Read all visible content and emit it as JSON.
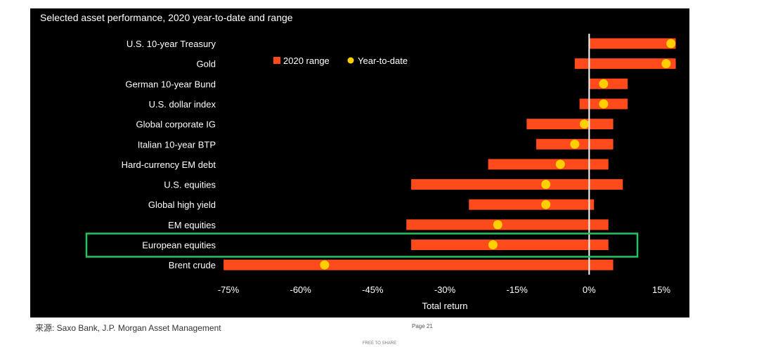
{
  "chart_data": {
    "type": "bar",
    "subtype": "horizontal-range-with-dot",
    "title": "Selected asset performance, 2020 year-to-date and range",
    "xlabel": "Total return",
    "ylabel": "",
    "xlim": [
      -75,
      15
    ],
    "xticks": [
      -75,
      -60,
      -45,
      -30,
      -15,
      0,
      15
    ],
    "xtick_labels": [
      "-75%",
      "-60%",
      "-45%",
      "-30%",
      "-15%",
      "0%",
      "15%"
    ],
    "grid": false,
    "legend_position": "top-center",
    "categories": [
      "U.S. 10-year Treasury",
      "Gold",
      "German 10-year Bund",
      "U.S. dollar index",
      "Global corporate IG",
      "Italian 10-year BTP",
      "Hard-currency EM debt",
      "U.S. equities",
      "Global high yield",
      "EM equities",
      "European equities",
      "Brent crude"
    ],
    "series": [
      {
        "name": "2020 range",
        "color": "#ff4a1c",
        "low": [
          0,
          -3,
          0,
          -2,
          -13,
          -11,
          -21,
          -37,
          -25,
          -38,
          -37,
          -76
        ],
        "high": [
          18,
          18,
          8,
          8,
          5,
          5,
          4,
          7,
          1,
          4,
          4,
          5
        ]
      },
      {
        "name": "Year-to-date",
        "color": "#ffd000",
        "values": [
          17,
          16,
          3,
          3,
          -1,
          -3,
          -6,
          -9,
          -9,
          -19,
          -20,
          -55
        ]
      }
    ],
    "highlight": {
      "category": "European equities",
      "color": "#22c55e"
    },
    "colors": {
      "background": "#000000",
      "text": "#ffffff",
      "zero_line": "#ffffff"
    }
  },
  "footer": {
    "source": "来源: Saxo Bank, J.P. Morgan Asset Management",
    "page": "Page 21",
    "free_note": "FREE TO SHARE"
  }
}
